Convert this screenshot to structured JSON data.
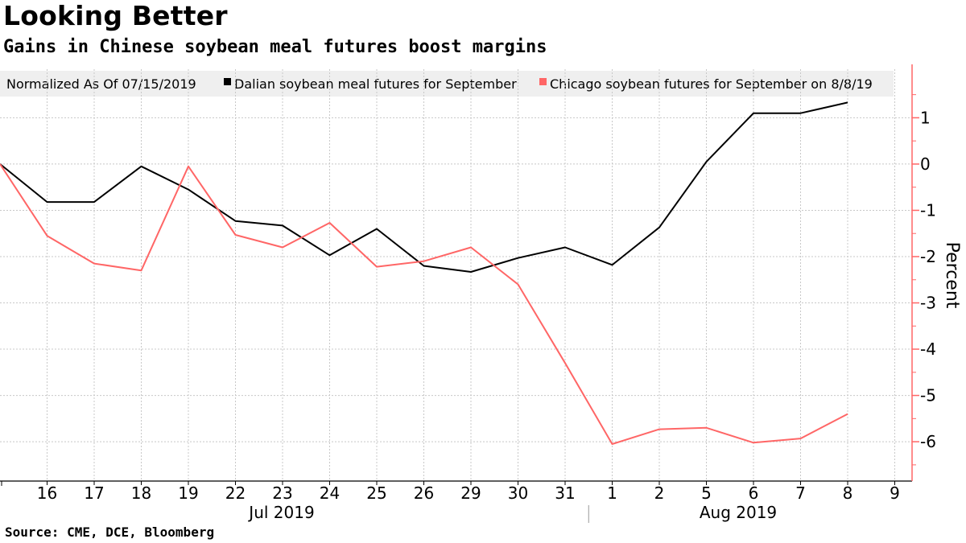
{
  "header": {
    "title": "Looking Better",
    "subtitle": "Gains in Chinese soybean meal futures boost margins"
  },
  "footer": {
    "source": "Source: CME, DCE, Bloomberg"
  },
  "colors": {
    "dalian": "#000000",
    "chicago": "#ff6666",
    "legend_bg": "#efefef",
    "grid": "#c8c8c8"
  },
  "chart_data": {
    "type": "line",
    "legend_title": "Normalized As Of 07/15/2019",
    "legend_placement": "top",
    "x": [
      "2019-07-15",
      "2019-07-16",
      "2019-07-17",
      "2019-07-18",
      "2019-07-19",
      "2019-07-22",
      "2019-07-23",
      "2019-07-24",
      "2019-07-25",
      "2019-07-26",
      "2019-07-29",
      "2019-07-30",
      "2019-07-31",
      "2019-08-01",
      "2019-08-02",
      "2019-08-05",
      "2019-08-06",
      "2019-08-07",
      "2019-08-08"
    ],
    "x_tick_labels": [
      "16",
      "17",
      "18",
      "19",
      "22",
      "23",
      "24",
      "25",
      "26",
      "29",
      "30",
      "31",
      "1",
      "2",
      "5",
      "6",
      "7",
      "8",
      "9"
    ],
    "x_group_labels": [
      "Jul 2019",
      "Aug 2019"
    ],
    "series": [
      {
        "name": "Dalian soybean meal futures for September",
        "values": [
          0,
          -0.82,
          -0.82,
          -0.05,
          -0.55,
          -1.23,
          -1.33,
          -1.97,
          -1.4,
          -2.2,
          -2.33,
          -2.03,
          -1.8,
          -2.18,
          -1.37,
          0.05,
          1.1,
          1.1,
          1.33
        ]
      },
      {
        "name": "Chicago soybean futures for September on 8/8/19",
        "values": [
          0,
          -1.55,
          -2.15,
          -2.3,
          -0.05,
          -1.53,
          -1.8,
          -1.27,
          -2.22,
          -2.1,
          -1.8,
          -2.6,
          -4.3,
          -6.05,
          -5.73,
          -5.7,
          -6.02,
          -5.93,
          -5.4
        ]
      }
    ],
    "ylabel": "Percent",
    "yticks": [
      1,
      0,
      -1,
      -2,
      -3,
      -4,
      -5,
      -6
    ],
    "ylim": [
      -6.85,
      2.05
    ],
    "grid": true
  }
}
